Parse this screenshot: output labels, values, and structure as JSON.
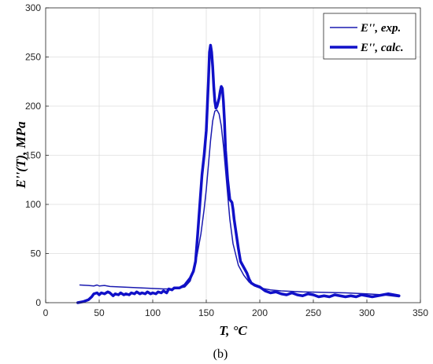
{
  "chart_data": {
    "type": "line",
    "xlabel": "T, °C",
    "ylabel": "E''(T), MPa",
    "xlim": [
      0,
      350
    ],
    "ylim": [
      0,
      300
    ],
    "xticks": [
      0,
      50,
      100,
      150,
      200,
      250,
      300,
      350
    ],
    "yticks": [
      0,
      50,
      100,
      150,
      200,
      250,
      300
    ],
    "grid": true,
    "legend_position": "top-right",
    "caption": "(b)",
    "series": [
      {
        "name": "E'', exp.",
        "color": "#1a1ab0",
        "x": [
          32,
          40,
          45,
          48,
          50,
          55,
          60,
          70,
          80,
          90,
          100,
          110,
          120,
          125,
          130,
          135,
          140,
          145,
          148,
          150,
          152,
          154,
          156,
          158,
          160,
          162,
          164,
          166,
          168,
          170,
          172,
          175,
          180,
          185,
          190,
          195,
          200,
          210,
          220,
          240,
          260,
          280,
          300,
          315,
          330
        ],
        "y": [
          18,
          17.5,
          17,
          18,
          17,
          17.5,
          16.5,
          16,
          15.5,
          15,
          14.5,
          14,
          14,
          15,
          16,
          22,
          40,
          70,
          95,
          115,
          140,
          165,
          185,
          195,
          196,
          192,
          180,
          160,
          135,
          110,
          85,
          60,
          38,
          28,
          21,
          17,
          15,
          13,
          12,
          11,
          10.5,
          10,
          9,
          8,
          6
        ]
      },
      {
        "name": "E'', calc.",
        "color": "#1010c8",
        "x": [
          30,
          35,
          40,
          43,
          45,
          48,
          50,
          52,
          55,
          58,
          60,
          63,
          65,
          68,
          70,
          73,
          75,
          78,
          80,
          83,
          85,
          88,
          90,
          93,
          95,
          98,
          100,
          103,
          105,
          108,
          110,
          113,
          115,
          118,
          120,
          125,
          130,
          135,
          138,
          140,
          142,
          144,
          146,
          148,
          150,
          152,
          153,
          154,
          155,
          156,
          157,
          158,
          159,
          160,
          162,
          163,
          164,
          165,
          166,
          167,
          168,
          170,
          172,
          174,
          175,
          176,
          178,
          180,
          182,
          184,
          186,
          188,
          190,
          192,
          195,
          200,
          205,
          210,
          215,
          220,
          225,
          230,
          235,
          240,
          245,
          250,
          255,
          260,
          265,
          270,
          275,
          280,
          285,
          290,
          295,
          300,
          305,
          310,
          315,
          320,
          325,
          330
        ],
        "y": [
          0,
          1,
          3,
          6,
          9,
          10,
          8,
          10,
          9,
          11,
          10,
          7,
          9,
          8,
          10,
          8,
          9,
          8,
          10,
          9,
          11,
          9,
          10,
          9,
          11,
          9,
          10,
          9,
          11,
          10,
          12,
          10,
          14,
          13,
          15,
          15,
          18,
          25,
          32,
          42,
          70,
          100,
          130,
          150,
          175,
          225,
          255,
          262,
          255,
          240,
          220,
          205,
          198,
          200,
          208,
          215,
          220,
          218,
          205,
          185,
          155,
          125,
          105,
          102,
          95,
          85,
          70,
          55,
          42,
          38,
          34,
          30,
          24,
          20,
          18,
          16,
          12,
          10,
          11,
          9,
          8,
          10,
          8,
          7,
          9,
          8,
          6,
          7,
          6,
          8,
          7,
          6,
          7,
          6,
          8,
          7,
          6,
          7,
          8,
          9,
          8,
          7
        ]
      }
    ]
  }
}
